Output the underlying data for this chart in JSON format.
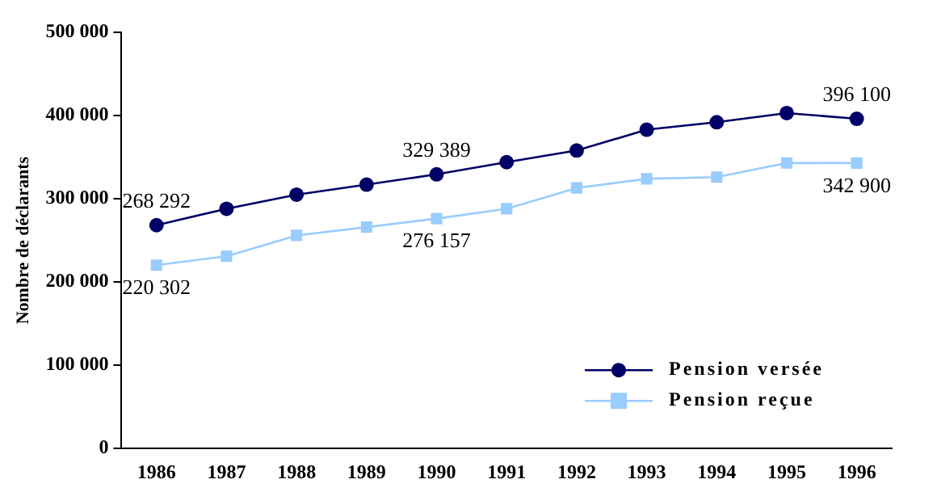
{
  "chart_data": {
    "type": "line",
    "ylabel": "Nombre de déclarants",
    "categories": [
      "1986",
      "1987",
      "1988",
      "1989",
      "1990",
      "1991",
      "1992",
      "1993",
      "1994",
      "1995",
      "1996"
    ],
    "series": [
      {
        "name": "Pension versée",
        "color": "#000066",
        "values": [
          268292,
          288000,
          305000,
          317000,
          329389,
          344000,
          358000,
          383000,
          392000,
          403000,
          396100
        ],
        "value_labels": [
          "268 292",
          null,
          null,
          null,
          "329 389",
          null,
          null,
          null,
          null,
          null,
          "396 100"
        ]
      },
      {
        "name": "Pension reçue",
        "color": "#99ccff",
        "marker": "square",
        "values": [
          220302,
          231000,
          256000,
          266000,
          276157,
          288000,
          313000,
          324000,
          326000,
          343000,
          342900
        ],
        "value_labels": [
          "220 302",
          null,
          null,
          null,
          "276 157",
          null,
          null,
          null,
          null,
          null,
          "342 900"
        ]
      }
    ],
    "ylim": [
      0,
      500000
    ],
    "yticks": [
      {
        "value": 0,
        "label": "0"
      },
      {
        "value": 100000,
        "label": "100 000"
      },
      {
        "value": 200000,
        "label": "200 000"
      },
      {
        "value": 300000,
        "label": "300 000"
      },
      {
        "value": 400000,
        "label": "400 000"
      },
      {
        "value": 500000,
        "label": "500 000"
      }
    ],
    "grid": false,
    "legend": "bottom right",
    "marker": "circle",
    "line_style": "solid"
  }
}
